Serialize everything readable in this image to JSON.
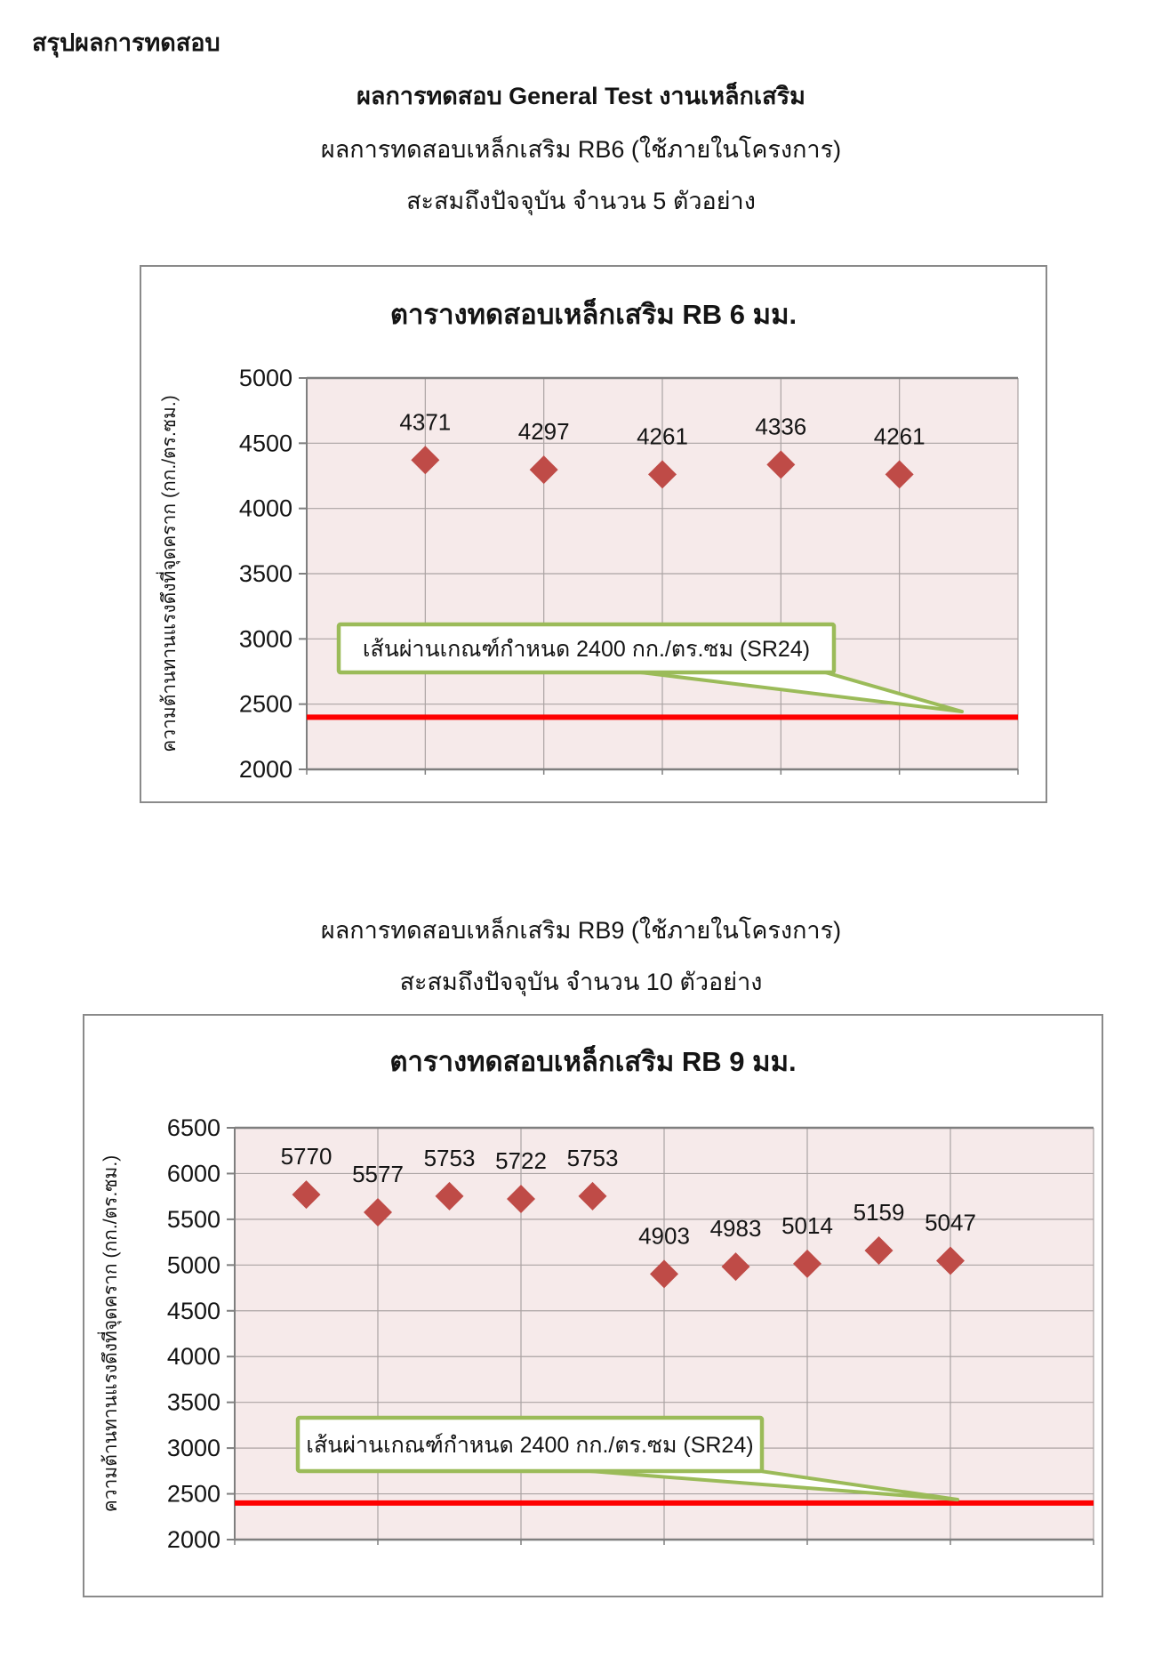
{
  "page": {
    "heading": "สรุปผลการทดสอบ",
    "main_title": "ผลการทดสอบ General Test งานเหล็กเสริม",
    "sections": [
      {
        "intro": "ผลการทดสอบเหล็กเสริม RB6 (ใช้ภายในโครงการ)",
        "count_line": "สะสมถึงปัจจุบัน จำนวน 5 ตัวอย่าง"
      },
      {
        "intro": "ผลการทดสอบเหล็กเสริม RB9 (ใช้ภายในโครงการ)",
        "count_line": "สะสมถึงปัจจุบัน จำนวน 10 ตัวอย่าง"
      }
    ]
  },
  "chart_data": [
    {
      "type": "scatter",
      "title": "ตารางทดสอบเหล็กเสริม RB 6 มม.",
      "ylabel": "ความต้านทานแรงดึงที่จุดคราก  (กก./ตร.ซม.)",
      "xlabel": "",
      "x": [
        1,
        2,
        3,
        4,
        5
      ],
      "values": [
        4371,
        4297,
        4261,
        4336,
        4261
      ],
      "point_labels": [
        "4371",
        "4297",
        "4261",
        "4336",
        "4261"
      ],
      "ylim": [
        2000,
        5000
      ],
      "yticks": [
        5000,
        4500,
        4000,
        3500,
        3000,
        2500,
        2000
      ],
      "xlim": [
        0,
        6
      ],
      "xgridlines": [
        1,
        2,
        3,
        4,
        5
      ],
      "grid": true,
      "legend": "none",
      "marker": {
        "shape": "diamond",
        "color": "#bf4b47"
      },
      "plot_bg": "#f6eaea",
      "refline": {
        "value": 2400,
        "color": "#fe0000",
        "callout": "เส้นผ่านเกณฑ์กำหนด 2400 กก./ตร.ซม (SR24)",
        "callout_border": "#9bbb59"
      }
    },
    {
      "type": "scatter",
      "title": "ตารางทดสอบเหล็กเสริม RB 9 มม.",
      "ylabel": "ความต้านทานแรงดึงที่จุดคราก  (กก./ตร.ซม.)",
      "xlabel": "",
      "x": [
        1,
        2,
        3,
        4,
        5,
        6,
        7,
        8,
        9,
        10
      ],
      "values": [
        5770,
        5577,
        5753,
        5722,
        5753,
        4903,
        4983,
        5014,
        5159,
        5047
      ],
      "point_labels": [
        "5770",
        "5577",
        "5753",
        "5722",
        "5753",
        "4903",
        "4983",
        "5014",
        "5159",
        "5047"
      ],
      "ylim": [
        2000,
        6500
      ],
      "yticks": [
        6500,
        6000,
        5500,
        5000,
        4500,
        4000,
        3500,
        3000,
        2500,
        2000
      ],
      "xlim": [
        0,
        12
      ],
      "xgridlines": [
        2,
        4,
        6,
        8,
        10
      ],
      "grid": true,
      "legend": "none",
      "marker": {
        "shape": "diamond",
        "color": "#bf4b47"
      },
      "plot_bg": "#f6eaea",
      "refline": {
        "value": 2400,
        "color": "#fe0000",
        "callout": "เส้นผ่านเกณฑ์กำหนด 2400 กก./ตร.ซม (SR24)",
        "callout_border": "#9bbb59"
      }
    }
  ]
}
